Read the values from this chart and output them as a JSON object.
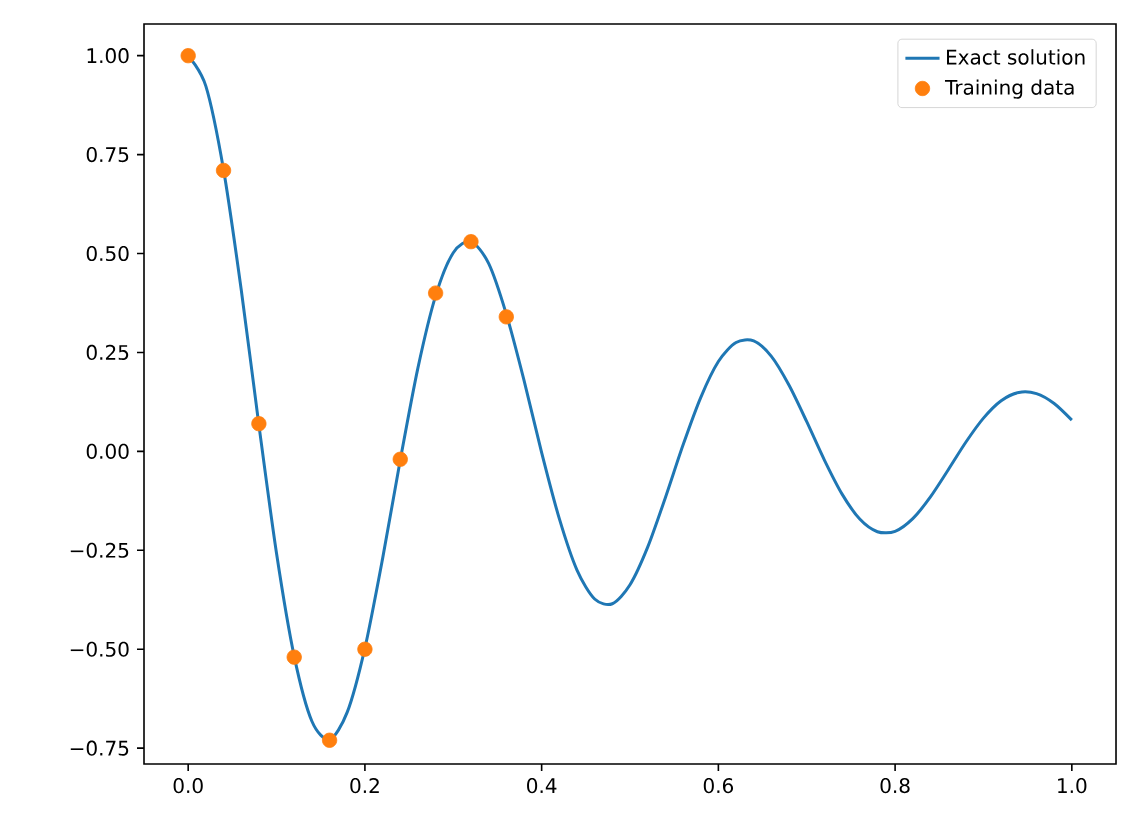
{
  "chart_data": {
    "type": "line",
    "xlim": [
      -0.05,
      1.05
    ],
    "ylim": [
      -0.79,
      1.08
    ],
    "xticks": [
      {
        "value": 0,
        "label": "0.0"
      },
      {
        "value": 0.2,
        "label": "0.2"
      },
      {
        "value": 0.4,
        "label": "0.4"
      },
      {
        "value": 0.6,
        "label": "0.6"
      },
      {
        "value": 0.8,
        "label": "0.8"
      },
      {
        "value": 1,
        "label": "1.0"
      }
    ],
    "yticks": [
      {
        "value": -0.75,
        "label": "−0.75"
      },
      {
        "value": -0.5,
        "label": "−0.50"
      },
      {
        "value": -0.25,
        "label": "−0.25"
      },
      {
        "value": 0,
        "label": "0.00"
      },
      {
        "value": 0.25,
        "label": "0.25"
      },
      {
        "value": 0.5,
        "label": "0.50"
      },
      {
        "value": 0.75,
        "label": "0.75"
      },
      {
        "value": 1,
        "label": "1.00"
      }
    ],
    "grid": false,
    "legend": "top right",
    "series": [
      {
        "name": "Exact solution",
        "color": "#1f77b4",
        "marker": "none",
        "x": [
          0,
          0.02,
          0.04,
          0.06,
          0.08,
          0.1,
          0.12,
          0.14,
          0.16,
          0.18,
          0.2,
          0.22,
          0.24,
          0.26,
          0.28,
          0.3,
          0.32,
          0.34,
          0.36,
          0.38,
          0.4,
          0.42,
          0.44,
          0.46,
          0.48,
          0.5,
          0.52,
          0.54,
          0.56,
          0.58,
          0.6,
          0.62,
          0.64,
          0.66,
          0.68,
          0.7,
          0.72,
          0.74,
          0.76,
          0.78,
          0.8,
          0.82,
          0.84,
          0.86,
          0.88,
          0.9,
          0.92,
          0.94,
          0.96,
          0.98,
          1.0
        ],
        "values": [
          1.0,
          0.923,
          0.712,
          0.409,
          0.067,
          -0.258,
          -0.518,
          -0.682,
          -0.728,
          -0.659,
          -0.497,
          -0.271,
          -0.022,
          0.211,
          0.393,
          0.502,
          0.53,
          0.475,
          0.347,
          0.18,
          -0.003,
          -0.17,
          -0.3,
          -0.373,
          -0.385,
          -0.337,
          -0.242,
          -0.117,
          0.016,
          0.136,
          0.227,
          0.275,
          0.279,
          0.24,
          0.167,
          0.075,
          -0.022,
          -0.108,
          -0.171,
          -0.203,
          -0.202,
          -0.17,
          -0.115,
          -0.047,
          0.023,
          0.084,
          0.128,
          0.149,
          0.146,
          0.121,
          0.079
        ]
      },
      {
        "name": "Training data",
        "type": "scatter",
        "color": "#ff7f0e",
        "marker": "circle",
        "x": [
          0,
          0.04,
          0.08,
          0.12,
          0.16,
          0.2,
          0.24,
          0.28,
          0.32,
          0.36
        ],
        "values": [
          1.0,
          0.71,
          0.07,
          -0.52,
          -0.73,
          -0.5,
          -0.02,
          0.4,
          0.53,
          0.34
        ]
      }
    ]
  }
}
